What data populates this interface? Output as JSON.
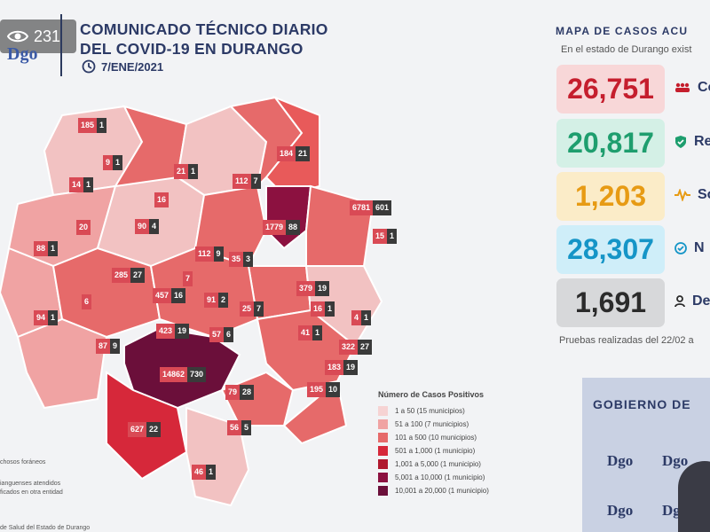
{
  "header": {
    "viewer_count": "231",
    "logo": "Dgo",
    "title_line1": "COMUNICADO TÉCNICO DIARIO",
    "title_line2": "DEL COVID-19 EN DURANGO",
    "date": "7/ENE/2021"
  },
  "map": {
    "labels": [
      {
        "a": "185",
        "b": "1"
      },
      {
        "a": "9",
        "b": "1"
      },
      {
        "a": "21",
        "b": "1"
      },
      {
        "a": "184",
        "b": "21"
      },
      {
        "a": "14",
        "b": "1"
      },
      {
        "a": "16",
        "b": ""
      },
      {
        "a": "112",
        "b": "7"
      },
      {
        "a": "6781",
        "b": "601"
      },
      {
        "a": "20",
        "b": ""
      },
      {
        "a": "90",
        "b": "4"
      },
      {
        "a": "1779",
        "b": "88"
      },
      {
        "a": "15",
        "b": "1"
      },
      {
        "a": "88",
        "b": "1"
      },
      {
        "a": "112",
        "b": "9"
      },
      {
        "a": "35",
        "b": "3"
      },
      {
        "a": "7",
        "b": ""
      },
      {
        "a": "285",
        "b": "27"
      },
      {
        "a": "457",
        "b": "16"
      },
      {
        "a": "379",
        "b": "19"
      },
      {
        "a": "6",
        "b": ""
      },
      {
        "a": "91",
        "b": "2"
      },
      {
        "a": "25",
        "b": "7"
      },
      {
        "a": "16",
        "b": "1"
      },
      {
        "a": "94",
        "b": "1"
      },
      {
        "a": "4",
        "b": "1"
      },
      {
        "a": "423",
        "b": "19"
      },
      {
        "a": "57",
        "b": "6"
      },
      {
        "a": "41",
        "b": "1"
      },
      {
        "a": "87",
        "b": "9"
      },
      {
        "a": "322",
        "b": "27"
      },
      {
        "a": "183",
        "b": "19"
      },
      {
        "a": "14862",
        "b": "730"
      },
      {
        "a": "195",
        "b": "10"
      },
      {
        "a": "79",
        "b": "28"
      },
      {
        "a": "627",
        "b": "22"
      },
      {
        "a": "56",
        "b": "5"
      },
      {
        "a": "46",
        "b": "1"
      }
    ],
    "note1": "chosos foráneos",
    "note2": "ianguenses atendidos",
    "note3": "ficados en otra entidad",
    "footer": "de Salud del Estado de Durango"
  },
  "legend": {
    "title": "Número de Casos Positivos",
    "items": [
      {
        "label": "1 a 50",
        "detail": "(15 municipios)",
        "color": "#f6d3d3"
      },
      {
        "label": "51 a 100",
        "detail": "(7 municipios)",
        "color": "#f0a3a3"
      },
      {
        "label": "101 a 500",
        "detail": "(10 municipios)",
        "color": "#e66a6a"
      },
      {
        "label": "501 a 1,000",
        "detail": "(1 municipio)",
        "color": "#d6283a"
      },
      {
        "label": "1,001 a 5,000",
        "detail": "(1 municipio)",
        "color": "#b0182e"
      },
      {
        "label": "5,001 a 10,000",
        "detail": "(1 municipio)",
        "color": "#8c1140"
      },
      {
        "label": "10,001 a 20,000",
        "detail": "(1 municipio)",
        "color": "#6b0f3a"
      }
    ]
  },
  "summary": {
    "title": "MAPA DE CASOS ACU",
    "subtitle": "En el estado de Durango exist",
    "stats": [
      {
        "value": "26,751",
        "label": "Co",
        "bg": "#f8d7d8",
        "color": "#c51e2d",
        "icon": "people-icon"
      },
      {
        "value": "20,817",
        "label": "Re",
        "bg": "#d4f0e6",
        "color": "#1e9e6e",
        "icon": "shield-check-icon"
      },
      {
        "value": "1,203",
        "label": "So",
        "bg": "#fbecc8",
        "color": "#e79b14",
        "icon": "pulse-icon"
      },
      {
        "value": "28,307",
        "label": "N",
        "bg": "#cfeef9",
        "color": "#1595c7",
        "icon": "check-circle-icon"
      },
      {
        "value": "1,691",
        "label": "De",
        "bg": "#d7d8da",
        "color": "#2b2b2b",
        "icon": "person-icon"
      }
    ],
    "tests_note": "Pruebas realizadas del 22/02 a"
  },
  "video": {
    "banner": "GOBIERNO DE",
    "logo": "Dgo"
  }
}
